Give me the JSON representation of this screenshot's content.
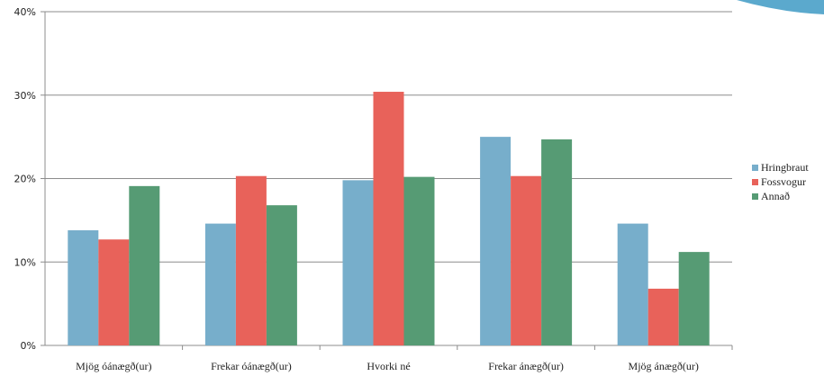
{
  "chart_data": {
    "type": "bar",
    "categories": [
      "Mjög óánægð(ur)",
      "Frekar óánægð(ur)",
      "Hvorki né",
      "Frekar ánægð(ur)",
      "Mjög ánægð(ur)"
    ],
    "series": [
      {
        "name": "Hringbraut",
        "color": "#77AECB",
        "values": [
          13.8,
          14.6,
          19.8,
          25.0,
          14.6
        ]
      },
      {
        "name": "Fossvogur",
        "color": "#E8625A",
        "values": [
          12.7,
          20.3,
          30.4,
          20.3,
          6.8
        ]
      },
      {
        "name": "Annað",
        "color": "#569B74",
        "values": [
          19.1,
          16.8,
          20.2,
          24.7,
          11.2
        ]
      }
    ],
    "ylim": [
      0,
      40
    ],
    "yticks": [
      "0%",
      "10%",
      "20%",
      "30%",
      "40%"
    ],
    "grid": true,
    "legend_position": "right",
    "decoration_color": "#5BA9CD"
  }
}
